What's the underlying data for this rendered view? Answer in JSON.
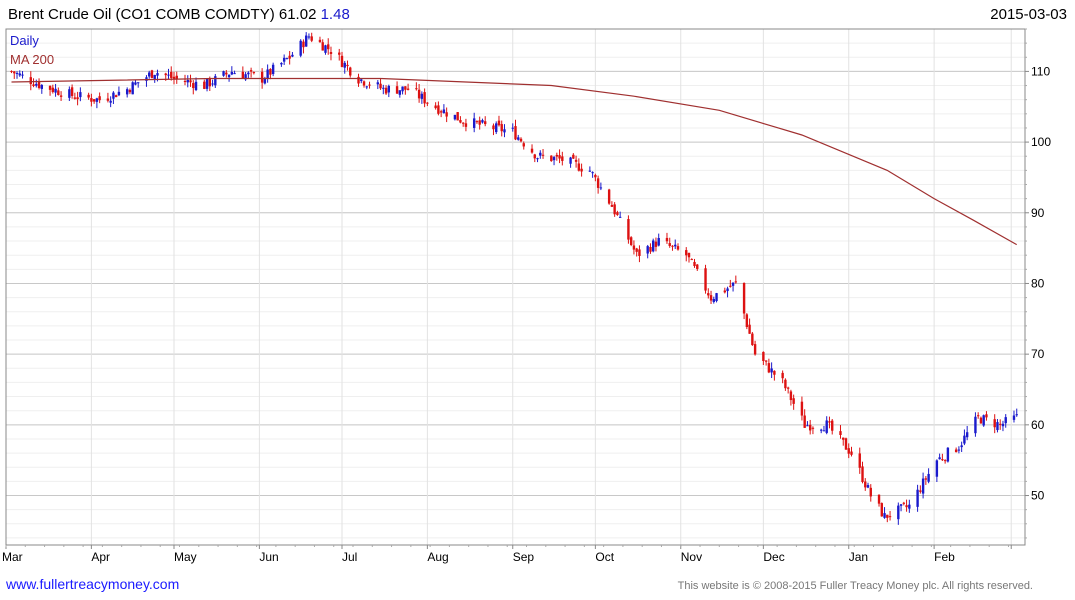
{
  "header": {
    "title": "Brent Crude Oil  (CO1 COMB COMDTY) 61.02",
    "change": "1.48",
    "date": "2015-03-03"
  },
  "footer": {
    "link": "www.fullertreacymoney.com",
    "copyright": "This website is © 2008-2015 Fuller Treacy Money plc. All rights reserved."
  },
  "colors": {
    "up": "#1a1acc",
    "down": "#dd1111",
    "ma": "#a03030",
    "grid": "#d8d8d8"
  },
  "chart_data": {
    "type": "candlestick",
    "legend": [
      "Daily",
      "MA 200"
    ],
    "legend_position": "top-left",
    "y_axis_side": "right",
    "ylim": [
      43,
      116
    ],
    "yticks": [
      50,
      60,
      70,
      80,
      90,
      100,
      110
    ],
    "xticks": [
      "Mar",
      "Apr",
      "May",
      "Jun",
      "Jul",
      "Aug",
      "Sep",
      "Oct",
      "Nov",
      "Dec",
      "Jan",
      "Feb"
    ],
    "grid": true,
    "daily_close": [
      {
        "x": "2014-03-03",
        "y": 110.0
      },
      {
        "x": "2014-03-14",
        "y": 108.0
      },
      {
        "x": "2014-03-26",
        "y": 106.5
      },
      {
        "x": "2014-04-04",
        "y": 106.0
      },
      {
        "x": "2014-04-14",
        "y": 107.5
      },
      {
        "x": "2014-04-24",
        "y": 110.0
      },
      {
        "x": "2014-05-01",
        "y": 109.0
      },
      {
        "x": "2014-05-12",
        "y": 108.0
      },
      {
        "x": "2014-05-22",
        "y": 110.0
      },
      {
        "x": "2014-06-02",
        "y": 109.0
      },
      {
        "x": "2014-06-12",
        "y": 112.0
      },
      {
        "x": "2014-06-19",
        "y": 115.0
      },
      {
        "x": "2014-06-27",
        "y": 113.0
      },
      {
        "x": "2014-07-07",
        "y": 109.0
      },
      {
        "x": "2014-07-16",
        "y": 107.5
      },
      {
        "x": "2014-07-25",
        "y": 107.5
      },
      {
        "x": "2014-08-04",
        "y": 105.0
      },
      {
        "x": "2014-08-14",
        "y": 103.0
      },
      {
        "x": "2014-08-25",
        "y": 102.0
      },
      {
        "x": "2014-09-01",
        "y": 101.5
      },
      {
        "x": "2014-09-10",
        "y": 98.0
      },
      {
        "x": "2014-09-19",
        "y": 97.5
      },
      {
        "x": "2014-09-29",
        "y": 96.0
      },
      {
        "x": "2014-10-07",
        "y": 91.0
      },
      {
        "x": "2014-10-16",
        "y": 84.0
      },
      {
        "x": "2014-10-24",
        "y": 86.0
      },
      {
        "x": "2014-11-03",
        "y": 84.0
      },
      {
        "x": "2014-11-12",
        "y": 78.0
      },
      {
        "x": "2014-11-21",
        "y": 80.0
      },
      {
        "x": "2014-11-28",
        "y": 70.0
      },
      {
        "x": "2014-12-08",
        "y": 66.0
      },
      {
        "x": "2014-12-16",
        "y": 60.0
      },
      {
        "x": "2014-12-24",
        "y": 60.0
      },
      {
        "x": "2015-01-02",
        "y": 56.0
      },
      {
        "x": "2015-01-09",
        "y": 50.0
      },
      {
        "x": "2015-01-14",
        "y": 47.0
      },
      {
        "x": "2015-01-23",
        "y": 48.5
      },
      {
        "x": "2015-02-02",
        "y": 55.0
      },
      {
        "x": "2015-02-10",
        "y": 57.0
      },
      {
        "x": "2015-02-17",
        "y": 61.0
      },
      {
        "x": "2015-02-25",
        "y": 60.0
      },
      {
        "x": "2015-03-03",
        "y": 61.02
      }
    ],
    "ma200": [
      {
        "x": "2014-03-03",
        "y": 108.5
      },
      {
        "x": "2014-05-15",
        "y": 109.0
      },
      {
        "x": "2014-07-15",
        "y": 109.0
      },
      {
        "x": "2014-08-15",
        "y": 108.5
      },
      {
        "x": "2014-09-15",
        "y": 108.0
      },
      {
        "x": "2014-10-15",
        "y": 106.5
      },
      {
        "x": "2014-11-15",
        "y": 104.5
      },
      {
        "x": "2014-12-15",
        "y": 101.0
      },
      {
        "x": "2015-01-15",
        "y": 96.0
      },
      {
        "x": "2015-02-01",
        "y": 92.0
      },
      {
        "x": "2015-02-15",
        "y": 89.0
      },
      {
        "x": "2015-03-03",
        "y": 85.5
      }
    ]
  }
}
